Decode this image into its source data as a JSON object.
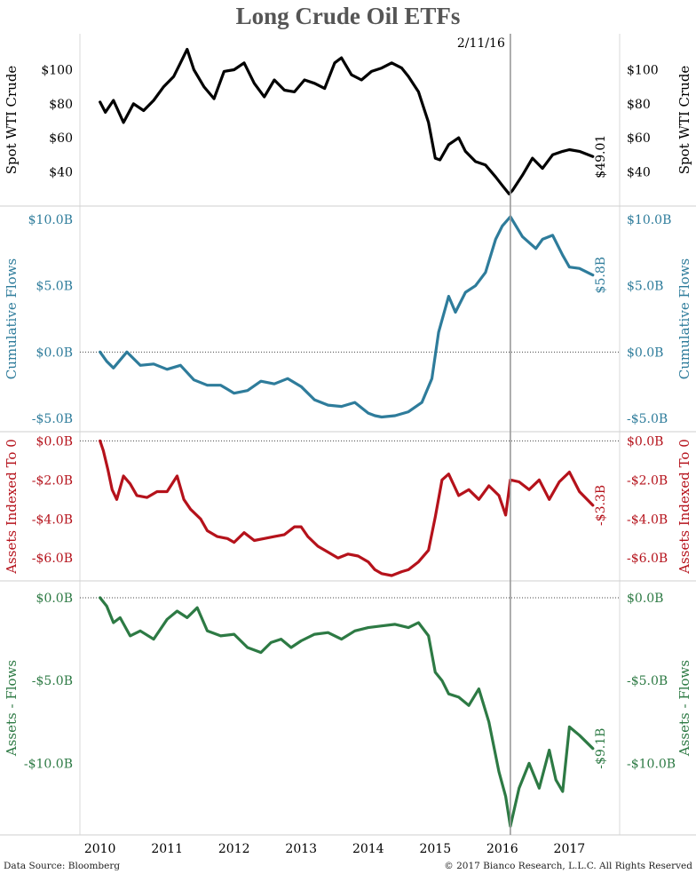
{
  "title": "Long Crude Oil ETFs",
  "annotation_date": "2/11/16",
  "footer_left": "Data Source: Bloomberg",
  "footer_right": "© 2017 Bianco Research, L.L.C. All Rights Reserved",
  "colors": {
    "black": "#000000",
    "blue": "#2e7c9b",
    "red": "#b5121b",
    "green": "#2d7a44",
    "title": "#555555"
  },
  "chart_data": [
    {
      "type": "line",
      "ylabel": "Spot WTI Crude",
      "color": "#000000",
      "ylim": [
        23,
        118
      ],
      "ticks": [
        40,
        60,
        80,
        100
      ],
      "tick_labels": [
        "$40",
        "$60",
        "$80",
        "$100"
      ],
      "last_label": "$49.01",
      "zero_line": false,
      "x": [
        2010.0,
        2010.08,
        2010.2,
        2010.35,
        2010.5,
        2010.65,
        2010.8,
        2010.95,
        2011.1,
        2011.2,
        2011.3,
        2011.4,
        2011.55,
        2011.7,
        2011.85,
        2012.0,
        2012.15,
        2012.3,
        2012.45,
        2012.6,
        2012.75,
        2012.9,
        2013.05,
        2013.2,
        2013.35,
        2013.5,
        2013.6,
        2013.75,
        2013.9,
        2014.05,
        2014.2,
        2014.35,
        2014.5,
        2014.6,
        2014.75,
        2014.9,
        2015.0,
        2015.07,
        2015.2,
        2015.35,
        2015.45,
        2015.6,
        2015.75,
        2015.9,
        2016.0,
        2016.1,
        2016.15,
        2016.3,
        2016.45,
        2016.6,
        2016.75,
        2016.9,
        2017.0,
        2017.15,
        2017.35
      ],
      "y": [
        81,
        75,
        82,
        69,
        80,
        76,
        82,
        90,
        96,
        104,
        112,
        100,
        90,
        83,
        99,
        100,
        104,
        92,
        84,
        94,
        88,
        87,
        94,
        92,
        89,
        104,
        107,
        97,
        94,
        99,
        101,
        104,
        101,
        96,
        87,
        69,
        48,
        47,
        56,
        60,
        52,
        46,
        44,
        37,
        32,
        27,
        29,
        38,
        48,
        42,
        50,
        52,
        53,
        52,
        49
      ]
    },
    {
      "type": "line",
      "ylabel": "Cumulative Flows",
      "color": "#2e7c9b",
      "ylim": [
        -5.6,
        10.6
      ],
      "ticks": [
        -5,
        0,
        5,
        10
      ],
      "tick_labels": [
        "-$5.0B",
        "$0.0B",
        "$5.0B",
        "$10.0B"
      ],
      "last_label": "$5.8B",
      "zero_line": true,
      "x": [
        2010.0,
        2010.1,
        2010.2,
        2010.4,
        2010.6,
        2010.8,
        2011.0,
        2011.2,
        2011.4,
        2011.6,
        2011.8,
        2012.0,
        2012.2,
        2012.4,
        2012.6,
        2012.8,
        2013.0,
        2013.2,
        2013.4,
        2013.6,
        2013.8,
        2014.0,
        2014.1,
        2014.2,
        2014.4,
        2014.6,
        2014.8,
        2014.95,
        2015.05,
        2015.2,
        2015.3,
        2015.45,
        2015.6,
        2015.75,
        2015.9,
        2016.0,
        2016.12,
        2016.3,
        2016.5,
        2016.6,
        2016.75,
        2016.9,
        2017.0,
        2017.15,
        2017.35
      ],
      "y": [
        0.0,
        -0.7,
        -1.2,
        0.0,
        -1.0,
        -0.9,
        -1.3,
        -1.0,
        -2.1,
        -2.5,
        -2.5,
        -3.1,
        -2.9,
        -2.2,
        -2.4,
        -2.0,
        -2.6,
        -3.6,
        -4.0,
        -4.1,
        -3.8,
        -4.6,
        -4.8,
        -4.9,
        -4.8,
        -4.5,
        -3.8,
        -2.0,
        1.5,
        4.2,
        3.0,
        4.5,
        5.0,
        6.0,
        8.5,
        9.5,
        10.2,
        8.7,
        7.8,
        8.5,
        8.8,
        7.3,
        6.4,
        6.3,
        5.8
      ]
    },
    {
      "type": "line",
      "ylabel": "Assets Indexed To 0",
      "color": "#b5121b",
      "ylim": [
        -6.9,
        0.2
      ],
      "ticks": [
        -6,
        -4,
        -2,
        0
      ],
      "tick_labels": [
        "-$6.0B",
        "-$4.0B",
        "-$2.0B",
        "$0.0B"
      ],
      "last_label": "-$3.3B",
      "zero_line": true,
      "x": [
        2010.0,
        2010.05,
        2010.12,
        2010.18,
        2010.25,
        2010.35,
        2010.45,
        2010.55,
        2010.7,
        2010.85,
        2011.0,
        2011.15,
        2011.25,
        2011.35,
        2011.5,
        2011.6,
        2011.75,
        2011.9,
        2012.0,
        2012.15,
        2012.3,
        2012.45,
        2012.6,
        2012.75,
        2012.9,
        2013.0,
        2013.1,
        2013.25,
        2013.4,
        2013.55,
        2013.7,
        2013.85,
        2014.0,
        2014.1,
        2014.2,
        2014.35,
        2014.5,
        2014.6,
        2014.75,
        2014.9,
        2015.0,
        2015.1,
        2015.2,
        2015.35,
        2015.5,
        2015.65,
        2015.8,
        2015.95,
        2016.05,
        2016.12,
        2016.25,
        2016.4,
        2016.55,
        2016.7,
        2016.85,
        2017.0,
        2017.15,
        2017.35
      ],
      "y": [
        0.0,
        -0.5,
        -1.5,
        -2.5,
        -3.0,
        -1.8,
        -2.2,
        -2.8,
        -2.9,
        -2.6,
        -2.6,
        -1.8,
        -3.0,
        -3.5,
        -4.0,
        -4.6,
        -4.9,
        -5.0,
        -5.2,
        -4.7,
        -5.1,
        -5.0,
        -4.9,
        -4.8,
        -4.4,
        -4.4,
        -4.9,
        -5.4,
        -5.7,
        -6.0,
        -5.8,
        -5.9,
        -6.2,
        -6.6,
        -6.8,
        -6.9,
        -6.7,
        -6.6,
        -6.2,
        -5.6,
        -3.9,
        -2.0,
        -1.7,
        -2.8,
        -2.5,
        -3.0,
        -2.3,
        -2.8,
        -3.8,
        -2.0,
        -2.1,
        -2.5,
        -2.0,
        -3.0,
        -2.1,
        -1.6,
        -2.6,
        -3.3
      ]
    },
    {
      "type": "line",
      "ylabel": "Assets - Flows",
      "color": "#2d7a44",
      "ylim": [
        -14.0,
        0.7
      ],
      "ticks": [
        -10,
        -5,
        0
      ],
      "tick_labels": [
        "-$10.0B",
        "-$5.0B",
        "$0.0B"
      ],
      "last_label": "-$9.1B",
      "zero_line": true,
      "x": [
        2010.0,
        2010.1,
        2010.2,
        2010.3,
        2010.45,
        2010.6,
        2010.8,
        2011.0,
        2011.15,
        2011.3,
        2011.45,
        2011.6,
        2011.8,
        2012.0,
        2012.2,
        2012.4,
        2012.55,
        2012.7,
        2012.85,
        2013.0,
        2013.2,
        2013.4,
        2013.6,
        2013.8,
        2014.0,
        2014.2,
        2014.4,
        2014.6,
        2014.75,
        2014.9,
        2015.0,
        2015.1,
        2015.2,
        2015.35,
        2015.5,
        2015.65,
        2015.8,
        2015.95,
        2016.05,
        2016.12,
        2016.25,
        2016.4,
        2016.55,
        2016.7,
        2016.8,
        2016.9,
        2017.0,
        2017.15,
        2017.35
      ],
      "y": [
        0.0,
        -0.5,
        -1.5,
        -1.2,
        -2.3,
        -2.0,
        -2.5,
        -1.3,
        -0.8,
        -1.2,
        -0.6,
        -2.0,
        -2.3,
        -2.2,
        -3.0,
        -3.3,
        -2.7,
        -2.5,
        -3.0,
        -2.6,
        -2.2,
        -2.1,
        -2.5,
        -2.0,
        -1.8,
        -1.7,
        -1.6,
        -1.8,
        -1.5,
        -2.3,
        -4.5,
        -5.0,
        -5.8,
        -6.0,
        -6.5,
        -5.5,
        -7.5,
        -10.5,
        -12.0,
        -13.8,
        -11.5,
        -10.0,
        -11.5,
        -9.2,
        -11.0,
        -11.7,
        -7.8,
        -8.3,
        -9.1
      ]
    }
  ],
  "x_axis": {
    "ticks": [
      2010,
      2011,
      2012,
      2013,
      2014,
      2015,
      2016,
      2017
    ],
    "tick_labels": [
      "2010",
      "2011",
      "2012",
      "2013",
      "2014",
      "2015",
      "2016",
      "2017"
    ],
    "xlim": [
      2009.7,
      2017.75
    ],
    "marker_x": 2016.12
  }
}
